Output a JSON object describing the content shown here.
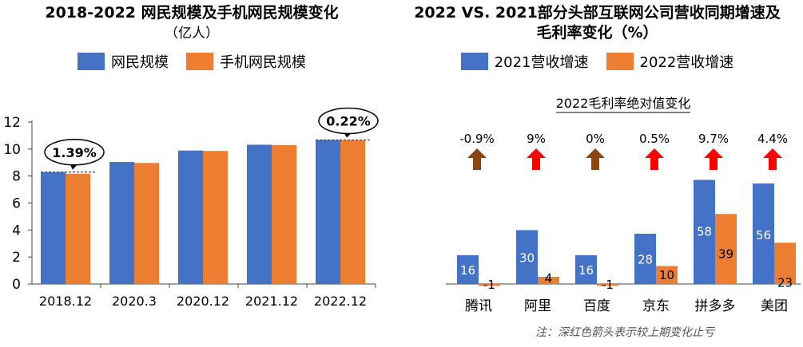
{
  "colors": {
    "blue": "#4472C4",
    "orange": "#ED7D31",
    "brown_arrow": "#8B4513",
    "red_arrow": "#FF0000"
  },
  "left": {
    "title": "2018-2022 网民规模及手机网民规模变化",
    "subtitle": "（亿人）",
    "legend": [
      "网民规模",
      "手机网民规模"
    ]
  },
  "right": {
    "title_line1": "2022 VS. 2021部分头部互联网公司营收同期增速及",
    "title_line2": "毛利率变化（%）",
    "legend": [
      "2021营收增速",
      "2022营收增速"
    ],
    "arrow_heading": "2022毛利率绝对值变化",
    "note": "注：深红色箭头表示较上期变化止亏"
  },
  "chart_data": [
    {
      "type": "bar",
      "title": "2018-2022 网民规模及手机网民规模变化",
      "subtitle": "（亿人）",
      "categories": [
        "2018.12",
        "2020.3",
        "2020.12",
        "2021.12",
        "2022.12"
      ],
      "series": [
        {
          "name": "网民规模",
          "values": [
            8.29,
            9.04,
            9.89,
            10.32,
            10.67
          ]
        },
        {
          "name": "手机网民规模",
          "values": [
            8.17,
            8.97,
            9.86,
            10.29,
            10.65
          ]
        }
      ],
      "ylim": [
        0,
        12
      ],
      "yticks": [
        0,
        2,
        4,
        6,
        8,
        10,
        12
      ],
      "annotations": [
        {
          "text": "1.39%",
          "category": "2018.12"
        },
        {
          "text": "0.22%",
          "category": "2022.12"
        }
      ],
      "legend": "top"
    },
    {
      "type": "bar",
      "title": "2022 VS. 2021部分头部互联网公司营收同期增速及毛利率变化（%）",
      "categories": [
        "腾讯",
        "阿里",
        "百度",
        "京东",
        "拼多多",
        "美团"
      ],
      "series": [
        {
          "name": "2021营收增速",
          "values": [
            16,
            30,
            16,
            28,
            58,
            56
          ]
        },
        {
          "name": "2022营收增速",
          "values": [
            -1,
            4,
            -1,
            10,
            39,
            23
          ]
        }
      ],
      "gross_margin_change": {
        "heading": "2022毛利率绝对值变化",
        "labels": [
          "-0.9%",
          "9%",
          "0%",
          "0.5%",
          "9.7%",
          "4.4%"
        ],
        "arrow_colors": [
          "brown",
          "red",
          "brown",
          "red",
          "red",
          "red"
        ]
      },
      "legend": "top"
    }
  ]
}
